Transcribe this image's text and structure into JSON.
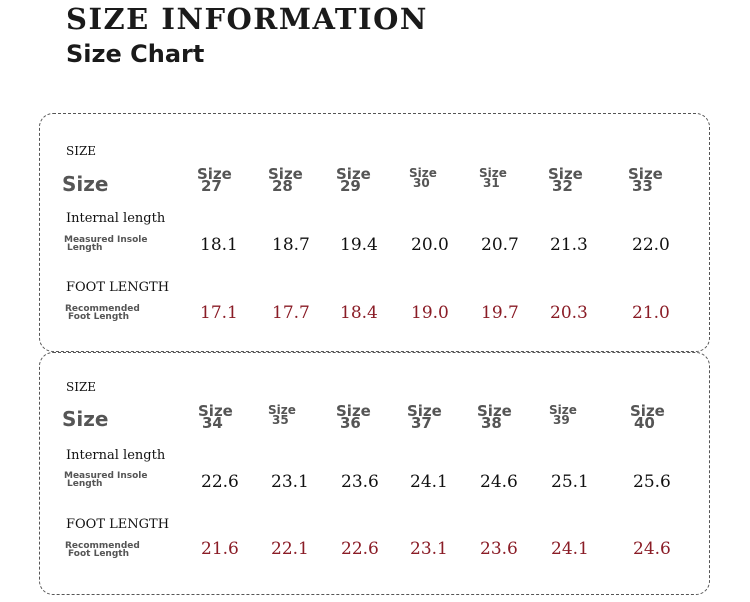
{
  "header": {
    "title": "SIZE INFORMATION",
    "subtitle": "Size Chart"
  },
  "labels": {
    "size_small": "SIZE",
    "size_big": "Size",
    "internal": "Internal length",
    "measured_line1": "Measured Insole",
    "measured_line2": "Length",
    "foot": "FOOT LENGTH",
    "recommended_line1": "Recommended",
    "recommended_line2": "Foot Length",
    "size_word": "Size"
  },
  "tables": [
    {
      "sizes": [
        "27",
        "28",
        "29",
        "30",
        "31",
        "32",
        "33"
      ],
      "internal_length": [
        "18.1",
        "18.7",
        "19.4",
        "20.0",
        "20.7",
        "21.3",
        "22.0"
      ],
      "foot_length": [
        "17.1",
        "17.7",
        "18.4",
        "19.0",
        "19.7",
        "20.3",
        "21.0"
      ]
    },
    {
      "sizes": [
        "34",
        "35",
        "36",
        "37",
        "38",
        "39",
        "40"
      ],
      "internal_length": [
        "22.6",
        "23.1",
        "23.6",
        "24.1",
        "24.6",
        "25.1",
        "25.6"
      ],
      "foot_length": [
        "21.6",
        "22.1",
        "22.6",
        "23.1",
        "23.6",
        "24.1",
        "24.6"
      ]
    }
  ],
  "colors": {
    "foot_length_values": "#8a1c26",
    "size_headers": "#555555"
  }
}
